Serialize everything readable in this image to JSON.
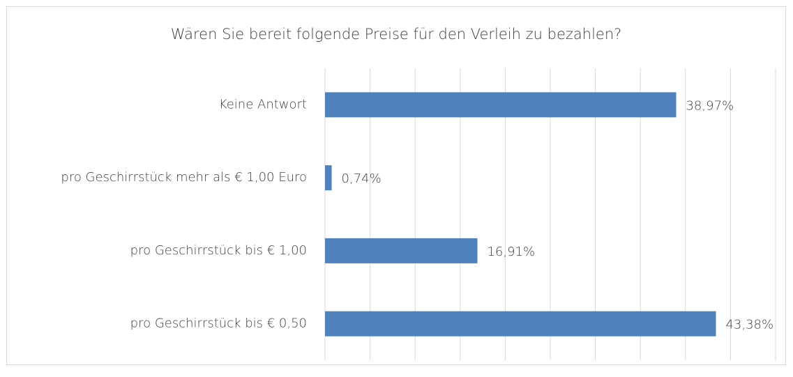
{
  "chart_data": {
    "type": "hbar",
    "title": "Wären Sie bereit folgende Preise für den Verleih zu bezahlen?",
    "categories": [
      "Keine Antwort",
      "pro Geschirrstück mehr als € 1,00 Euro",
      "pro Geschirrstück bis € 1,00",
      "pro Geschirrstück bis € 0,50"
    ],
    "values": [
      38.97,
      0.74,
      16.91,
      43.38
    ],
    "value_labels": [
      "38,97%",
      "0,74%",
      "16,91%",
      "43,38%"
    ],
    "color": "#4f81bd",
    "xlim": [
      0,
      50
    ],
    "xticks": [
      0,
      5,
      10,
      15,
      20,
      25,
      30,
      35,
      40,
      45,
      50
    ],
    "grid": true
  }
}
